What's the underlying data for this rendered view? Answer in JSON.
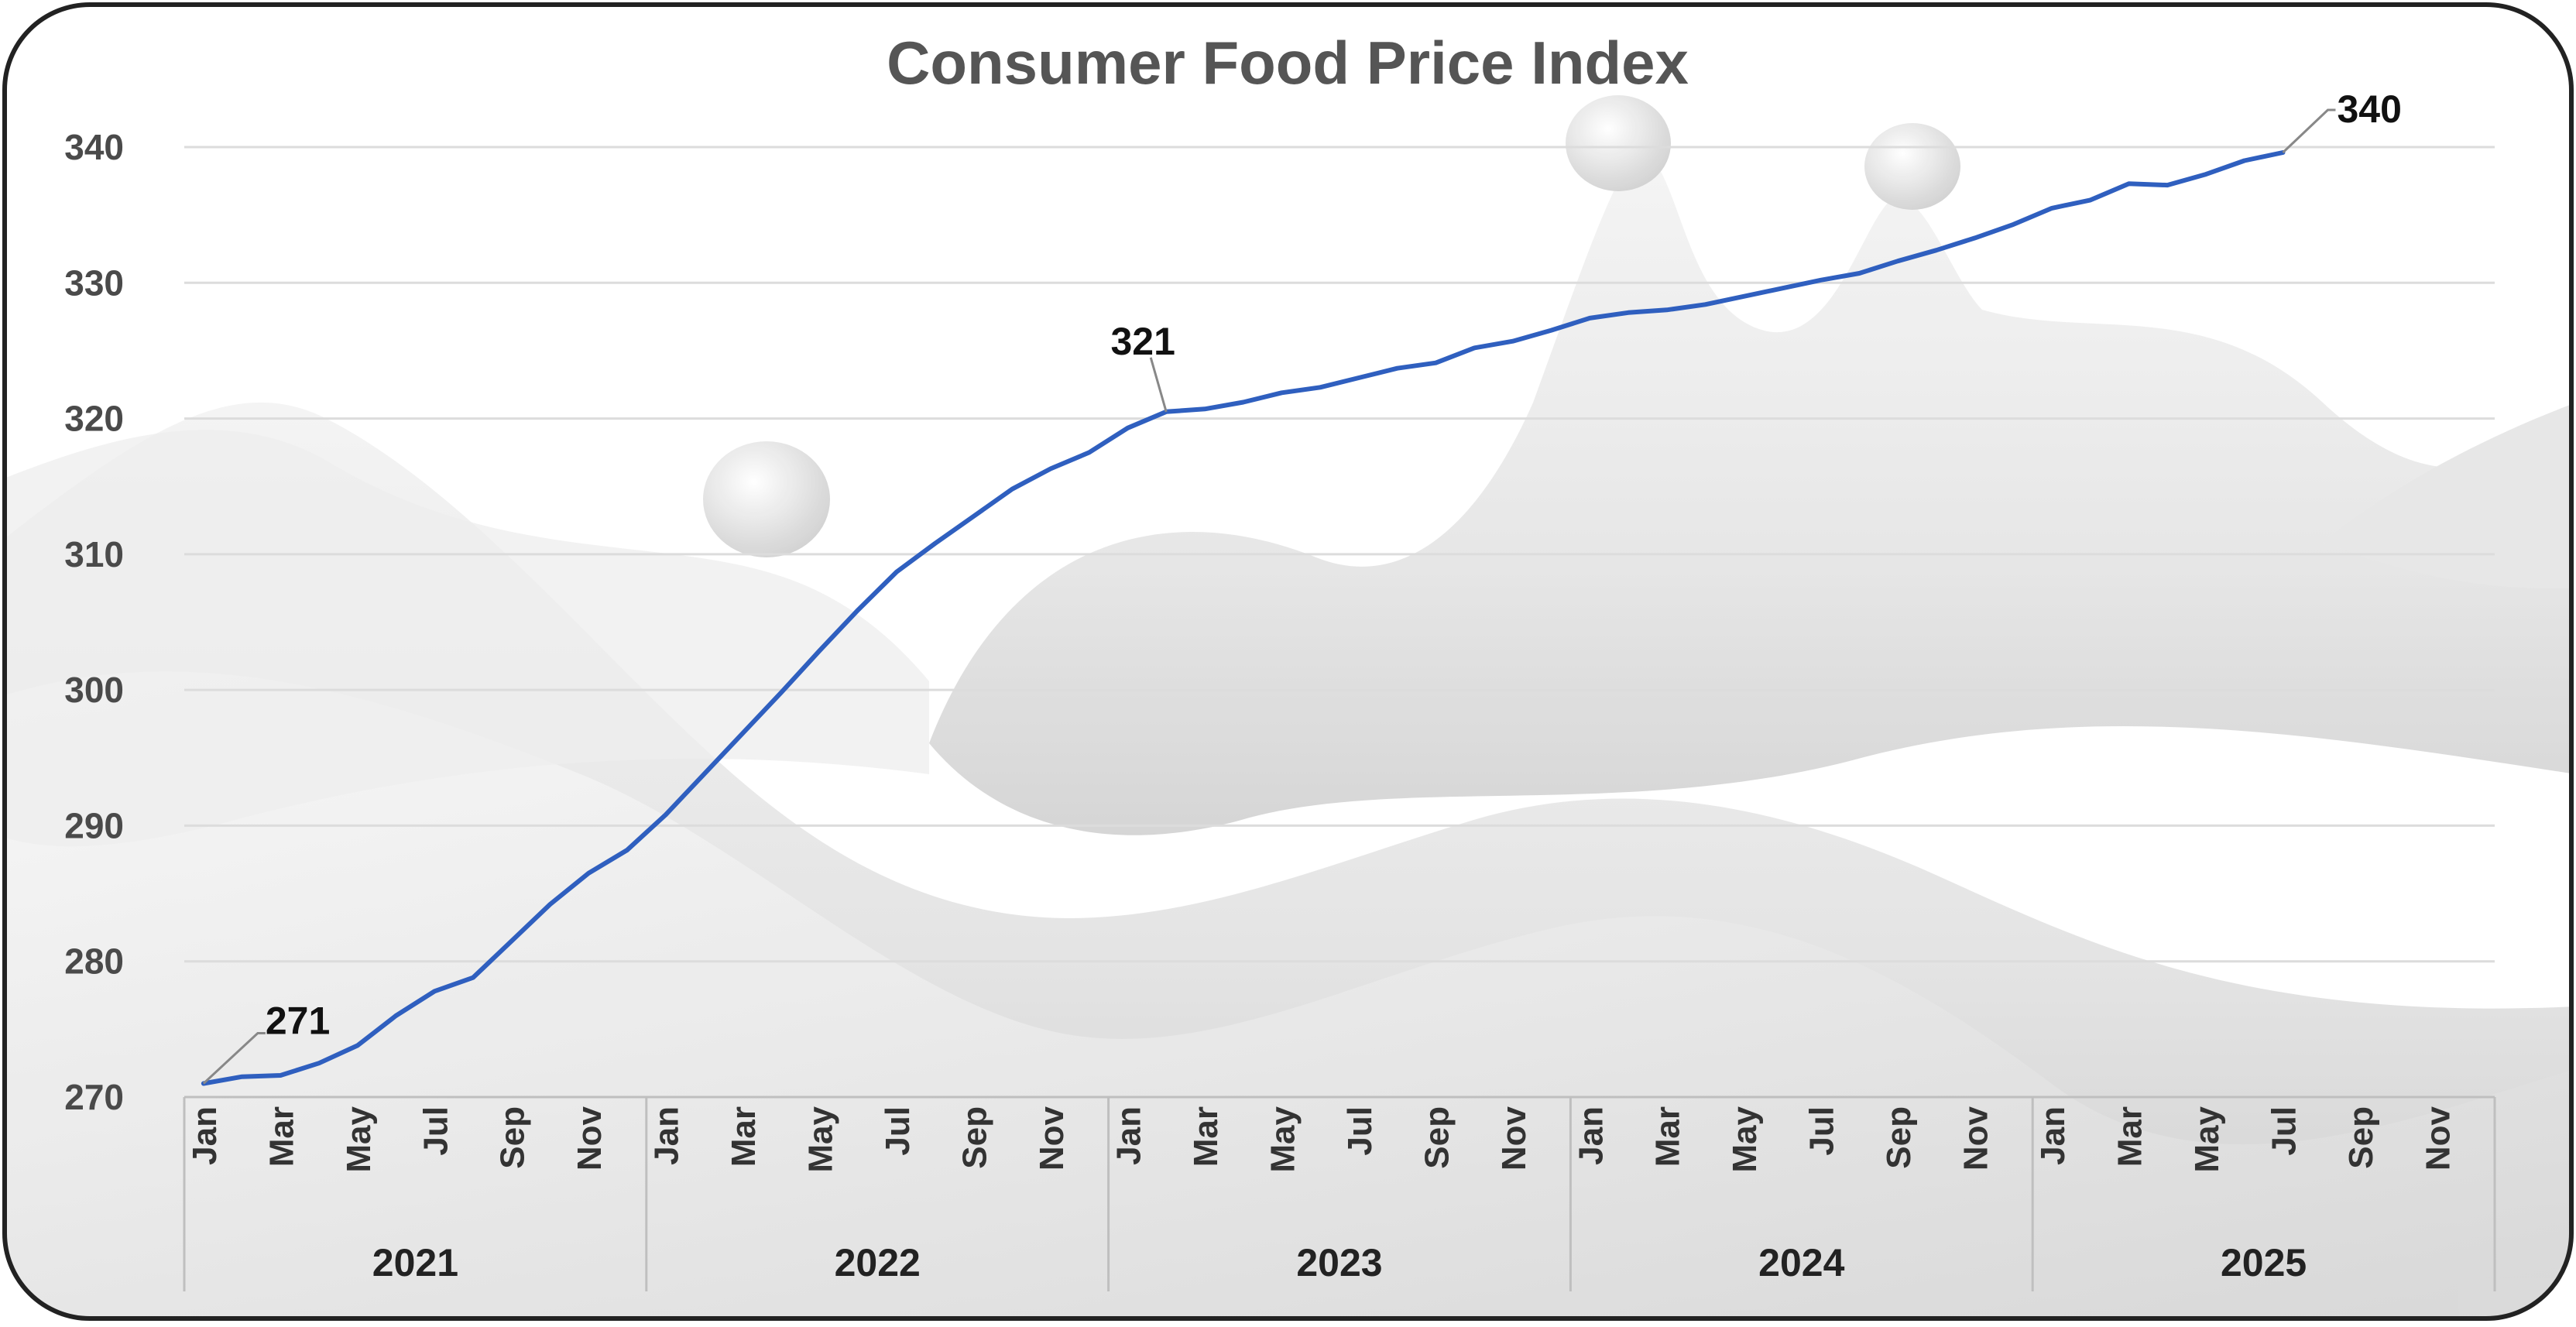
{
  "chart_data": {
    "type": "line",
    "title": "Consumer Food Price Index",
    "xlabel": "",
    "ylabel": "",
    "ylim": [
      270,
      340
    ],
    "yticks": [
      270,
      280,
      290,
      300,
      310,
      320,
      330,
      340
    ],
    "grid": true,
    "legend": "none",
    "line_color": "#2F5FBF",
    "month_labels": [
      "Jan",
      "Mar",
      "May",
      "Jul",
      "Sep",
      "Nov"
    ],
    "years": [
      "2021",
      "2022",
      "2023",
      "2024",
      "2025"
    ],
    "x_months_total": 60,
    "series": [
      {
        "x": [
          "2021-01",
          "2021-02",
          "2021-03",
          "2021-04",
          "2021-05",
          "2021-06",
          "2021-07",
          "2021-08",
          "2021-09",
          "2021-10",
          "2021-11",
          "2021-12",
          "2022-01",
          "2022-02",
          "2022-03",
          "2022-04",
          "2022-05",
          "2022-06",
          "2022-07",
          "2022-08",
          "2022-09",
          "2022-10",
          "2022-11",
          "2022-12",
          "2023-01",
          "2023-02",
          "2023-03",
          "2023-04",
          "2023-05",
          "2023-06",
          "2023-07",
          "2023-08",
          "2023-09",
          "2023-10",
          "2023-11",
          "2023-12",
          "2024-01",
          "2024-02",
          "2024-03",
          "2024-04",
          "2024-05",
          "2024-06",
          "2024-07",
          "2024-08",
          "2024-09",
          "2024-10",
          "2024-11",
          "2024-12",
          "2025-01",
          "2025-02",
          "2025-03",
          "2025-04",
          "2025-05",
          "2025-06",
          "2025-07"
        ],
        "values": [
          271.0,
          271.5,
          271.6,
          272.5,
          273.8,
          276.0,
          277.8,
          278.8,
          281.5,
          284.2,
          286.5,
          288.2,
          290.8,
          293.8,
          296.8,
          299.8,
          302.9,
          305.9,
          308.7,
          310.8,
          312.8,
          314.8,
          316.3,
          317.5,
          319.3,
          320.5,
          320.7,
          321.2,
          321.9,
          322.3,
          323.0,
          323.7,
          324.1,
          325.2,
          325.7,
          326.5,
          327.4,
          327.8,
          328.0,
          328.4,
          329.0,
          329.6,
          330.2,
          330.7,
          331.6,
          332.4,
          333.3,
          334.3,
          335.5,
          336.1,
          337.3,
          337.2,
          338.0,
          339.0,
          339.6
        ]
      }
    ],
    "annotations": [
      {
        "label": "271",
        "x": "2021-01",
        "y": 271
      },
      {
        "label": "321",
        "x": "2023-02",
        "y": 320.5
      },
      {
        "label": "340",
        "x": "2025-07",
        "y": 339.6
      }
    ]
  }
}
